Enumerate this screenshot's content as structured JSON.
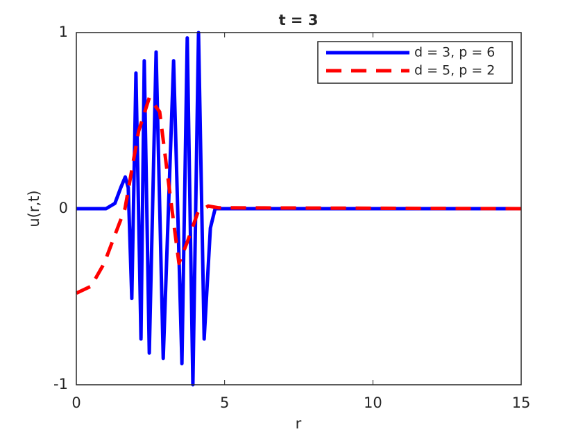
{
  "chart_data": {
    "type": "line",
    "title": "t = 3",
    "x_label": "r",
    "y_label": "u(r,t)",
    "xlim": [
      0,
      15
    ],
    "xticks": [
      0,
      5,
      10,
      15
    ],
    "ylim": [
      -1,
      1
    ],
    "yticks": [
      -1,
      0,
      1
    ],
    "legend": "upper right",
    "series": [
      {
        "name": "d = 3, p = 6",
        "color": "#0000ff",
        "style": "solid",
        "x": [
          0,
          1.0,
          1.3,
          1.5,
          1.65,
          1.75,
          1.87,
          2.01,
          2.18,
          2.29,
          2.46,
          2.69,
          2.93,
          3.28,
          3.56,
          3.74,
          3.93,
          4.12,
          4.31,
          4.52,
          4.68,
          15
        ],
        "values": [
          0,
          0,
          0.03,
          0.12,
          0.18,
          0.12,
          -0.51,
          0.77,
          -0.74,
          0.84,
          -0.82,
          0.89,
          -0.85,
          0.84,
          -0.88,
          0.97,
          -1.0,
          1.0,
          -0.74,
          -0.11,
          0,
          0
        ]
      },
      {
        "name": "d = 5, p = 2",
        "color": "#ff0000",
        "style": "dashed",
        "x": [
          0,
          0.5,
          0.94,
          1.3,
          1.64,
          2.1,
          2.46,
          2.81,
          3.16,
          3.46,
          3.74,
          4.1,
          4.45,
          4.8,
          15
        ],
        "values": [
          -0.48,
          -0.44,
          -0.31,
          -0.15,
          0,
          0.44,
          0.63,
          0.55,
          0.08,
          -0.31,
          -0.19,
          -0.02,
          0.015,
          0.005,
          0
        ]
      }
    ]
  }
}
